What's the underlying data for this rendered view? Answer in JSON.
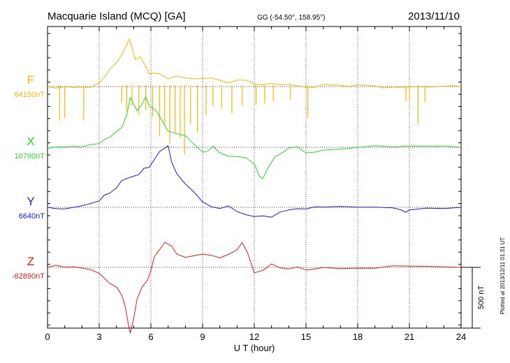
{
  "header": {
    "title": "Macquarie Island (MCQ)  [GA]",
    "coords": "GG (-54.50°, 158.95°)",
    "date": "2013/11/10"
  },
  "footer": {
    "plotted": "Plotted at 2013/12/11 01:31  UT",
    "scale_label": "500 nT"
  },
  "chart_data": {
    "type": "line",
    "xlabel": "U T (hour)",
    "xlim": [
      0,
      24
    ],
    "xticks": [
      "0",
      "3",
      "6",
      "9",
      "12",
      "15",
      "18",
      "21",
      "24"
    ],
    "grid": true,
    "scale_bar_nT": 500,
    "series": [
      {
        "name": "F",
        "baseline": "64150nT",
        "color": "#f5b800",
        "offset_nT": 0,
        "x": [
          0,
          0.5,
          1,
          1.5,
          2,
          2.5,
          3,
          3.3,
          3.6,
          4,
          4.3,
          4.6,
          4.75,
          4.9,
          5.1,
          5.4,
          5.7,
          5.9,
          6.2,
          6.5,
          7,
          7.5,
          8,
          8.5,
          9,
          9.5,
          10,
          10.5,
          11,
          11.5,
          12,
          12.5,
          13,
          13.5,
          14,
          14.5,
          15,
          15.5,
          16,
          16.5,
          17,
          17.5,
          18,
          18.5,
          19,
          19.5,
          20,
          20.5,
          21,
          21.5,
          22,
          22.5,
          23,
          23.5,
          24
        ],
        "y": [
          0,
          0,
          0,
          0,
          0,
          0,
          40,
          80,
          130,
          190,
          260,
          340,
          380,
          320,
          220,
          250,
          180,
          110,
          120,
          110,
          75,
          95,
          80,
          55,
          55,
          60,
          45,
          15,
          40,
          45,
          35,
          25,
          30,
          20,
          20,
          15,
          10,
          5,
          10,
          10,
          5,
          0,
          5,
          0,
          0,
          0,
          0,
          0,
          0,
          0,
          0,
          0,
          0,
          0,
          0
        ],
        "spikes": [
          {
            "x": 0.7,
            "y": -280
          },
          {
            "x": 1.0,
            "y": -260
          },
          {
            "x": 2.1,
            "y": -280
          },
          {
            "x": 4.3,
            "y": -130
          },
          {
            "x": 4.6,
            "y": -200
          },
          {
            "x": 4.9,
            "y": -160
          },
          {
            "x": 5.3,
            "y": -230
          },
          {
            "x": 5.7,
            "y": -190
          },
          {
            "x": 6.1,
            "y": -250
          },
          {
            "x": 6.5,
            "y": -410
          },
          {
            "x": 6.8,
            "y": -320
          },
          {
            "x": 7.1,
            "y": -470
          },
          {
            "x": 7.4,
            "y": -380
          },
          {
            "x": 7.7,
            "y": -420
          },
          {
            "x": 7.95,
            "y": -560
          },
          {
            "x": 8.3,
            "y": -310
          },
          {
            "x": 8.7,
            "y": -380
          },
          {
            "x": 9.2,
            "y": -230
          },
          {
            "x": 9.6,
            "y": -160
          },
          {
            "x": 10.1,
            "y": -180
          },
          {
            "x": 10.7,
            "y": -220
          },
          {
            "x": 11.3,
            "y": -160
          },
          {
            "x": 12.1,
            "y": -150
          },
          {
            "x": 12.6,
            "y": -140
          },
          {
            "x": 13.1,
            "y": -120
          },
          {
            "x": 14.1,
            "y": -110
          },
          {
            "x": 15.1,
            "y": -260
          },
          {
            "x": 20.8,
            "y": -120
          },
          {
            "x": 21.0,
            "y": -110
          },
          {
            "x": 21.5,
            "y": -310
          },
          {
            "x": 21.9,
            "y": -130
          }
        ]
      },
      {
        "name": "X",
        "baseline": "10790nT",
        "color": "#22dd22",
        "offset_nT": 0,
        "x": [
          0,
          0.5,
          1,
          1.5,
          2,
          2.5,
          3,
          3.3,
          3.6,
          4,
          4.3,
          4.6,
          4.8,
          5.0,
          5.2,
          5.5,
          5.7,
          5.9,
          6.1,
          6.3,
          6.6,
          7,
          7.5,
          8,
          8.5,
          9,
          9.3,
          9.6,
          10,
          10.5,
          11,
          11.5,
          12,
          12.3,
          12.5,
          12.8,
          13.2,
          13.6,
          14,
          14.5,
          15,
          15.5,
          16,
          17,
          18,
          19,
          20,
          21,
          22,
          23,
          24
        ],
        "y": [
          -10,
          -10,
          -5,
          0,
          0,
          10,
          20,
          60,
          90,
          130,
          170,
          270,
          420,
          360,
          310,
          350,
          410,
          330,
          320,
          290,
          220,
          130,
          120,
          100,
          30,
          -30,
          -20,
          10,
          -40,
          -60,
          -90,
          -90,
          -150,
          -250,
          -270,
          -180,
          -80,
          -40,
          0,
          10,
          -40,
          -30,
          -10,
          -5,
          0,
          0,
          0,
          0,
          0,
          0,
          0
        ]
      },
      {
        "name": "Y",
        "baseline": "6640nT",
        "color": "#1a1ad6",
        "offset_nT": 0,
        "x": [
          0,
          0.5,
          1,
          1.5,
          2,
          2.5,
          3,
          3.3,
          3.6,
          4,
          4.3,
          4.6,
          5.0,
          5.3,
          5.6,
          5.9,
          6.2,
          6.5,
          6.8,
          7.0,
          7.2,
          7.5,
          8,
          8.5,
          9,
          9.5,
          10,
          10.5,
          11,
          11.5,
          12,
          12.5,
          13,
          13.5,
          14,
          14.5,
          15,
          15.5,
          16,
          17,
          18,
          19,
          20,
          20.5,
          20.8,
          21,
          22,
          23,
          24
        ],
        "y": [
          0,
          0,
          0,
          10,
          20,
          40,
          60,
          90,
          110,
          160,
          210,
          230,
          250,
          260,
          320,
          340,
          400,
          460,
          490,
          520,
          380,
          280,
          190,
          120,
          40,
          0,
          -20,
          10,
          -40,
          -60,
          -70,
          -60,
          -80,
          -30,
          -20,
          0,
          -10,
          -5,
          0,
          0,
          0,
          0,
          -5,
          -20,
          -40,
          -10,
          0,
          0,
          0
        ]
      },
      {
        "name": "Z",
        "baseline": "-62890nT",
        "color": "#e21b1b",
        "offset_nT": 0,
        "x": [
          0,
          0.5,
          1,
          1.5,
          2,
          2.5,
          3,
          3.3,
          3.6,
          4,
          4.3,
          4.5,
          4.7,
          4.8,
          5.0,
          5.2,
          5.5,
          5.8,
          6.0,
          6.2,
          6.5,
          6.8,
          7.2,
          7.5,
          8,
          9,
          9.5,
          10,
          10.5,
          11,
          11.3,
          11.6,
          12,
          12.5,
          13,
          13.5,
          14,
          14.5,
          15,
          15.5,
          16,
          17,
          18,
          19,
          20,
          21,
          22,
          23,
          24
        ],
        "y": [
          0,
          10,
          0,
          0,
          -10,
          -20,
          -50,
          -80,
          -120,
          -160,
          -220,
          -310,
          -470,
          -530,
          -430,
          -260,
          -160,
          -120,
          -30,
          80,
          140,
          200,
          190,
          110,
          90,
          110,
          100,
          80,
          110,
          140,
          190,
          110,
          -50,
          -30,
          20,
          -10,
          0,
          10,
          -10,
          0,
          5,
          0,
          0,
          -5,
          0,
          0,
          0,
          0,
          0
        ]
      }
    ]
  }
}
